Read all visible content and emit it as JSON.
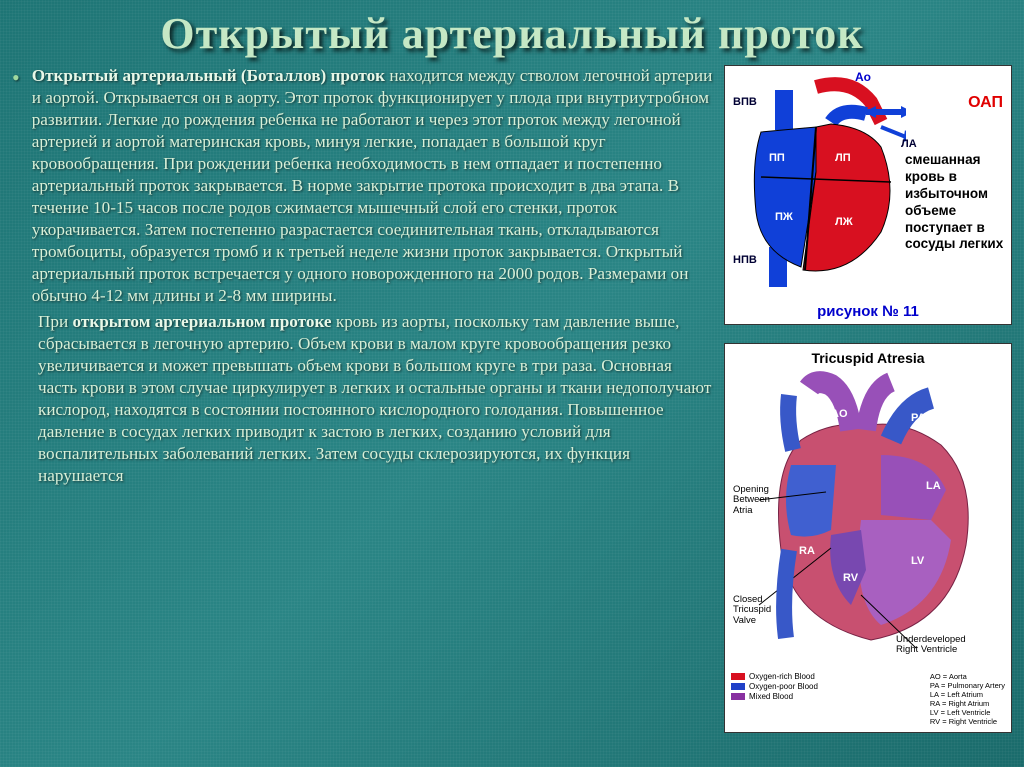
{
  "title": "Открытый артериальный проток",
  "paragraph1": {
    "bold_lead": "Открытый артериальный (Боталлов) проток",
    "rest": " находится между стволом легочной артерии и аортой. Открывается он в аорту. Этот проток функционирует у плода при внутриутробном развитии. Легкие до рождения ребенка не работают и через этот проток между легочной артерией и аортой материнская кровь, минуя легкие, попадает в большой круг кровообращения. При рождении ребенка необходимость в нем отпадает и постепенно артериальный проток закрывается. В норме закрытие протока происходит в два этапа. В течение 10-15 часов после родов сжимается мышечный слой его стенки, проток укорачивается. Затем постепенно разрастается соединительная ткань, откладываются тромбоциты, образуется тромб и к третьей неделе жизни проток закрывается. Открытый артериальный проток встречается у одного новорожденного на 2000 родов. Размерами он обычно 4-12 мм длины и 2-8 мм ширины."
  },
  "paragraph2": {
    "pre": "   При ",
    "bold": "открытом артериальном протоке",
    "rest": " кровь из аорты, поскольку там давление выше, сбрасывается в легочную артерию. Объем крови в малом круге кровообращения резко увеличивается и может превышать объем крови в большом круге в три раза. Основная часть крови в этом случае циркулирует в легких и остальные органы и ткани недополучают кислород, находятся в состоянии постоянного кислородного голодания. Повышенное давление в сосудах легких приводит к застою в легких, созданию условий для воспалительных заболеваний легких. Затем сосуды склерозируются, их функция нарушается"
  },
  "fig1": {
    "oap": "ОАП",
    "ao": "Ао",
    "labels": {
      "vpv": "ВПВ",
      "pp": "ПП",
      "lp": "ЛП",
      "la": "ЛА",
      "pzh": "ПЖ",
      "lzh": "ЛЖ",
      "npv": "НПВ"
    },
    "side_text": "смешанная кровь в избыточном объеме поступает в сосуды легких",
    "caption": "рисунок № 11",
    "colors": {
      "blue": "#1040d8",
      "red": "#d81020",
      "purple": "#8830a0",
      "outline": "#000000"
    }
  },
  "fig2": {
    "title": "Tricuspid Atresia",
    "labels": {
      "ao": "AO",
      "pa": "PA",
      "la": "LA",
      "lv": "LV",
      "rv": "RV",
      "ra": "RA",
      "opening": "Opening\nBetween\nAtria",
      "closed_valve": "Closed\nTricuspid\nValve",
      "underdev": "Underdeveloped\nRight Ventricle"
    },
    "legend_colors": [
      {
        "label": "Oxygen-rich Blood",
        "color": "#d81020"
      },
      {
        "label": "Oxygen-poor Blood",
        "color": "#2040c8"
      },
      {
        "label": "Mixed Blood",
        "color": "#8830a0"
      }
    ],
    "legend_abbrev": [
      "AO = Aorta",
      "PA = Pulmonary Artery",
      "LA = Left Atrium",
      "RA = Right Atrium",
      "LV = Left Ventricle",
      "RV = Right Ventricle"
    ],
    "colors": {
      "ao": "#9850b8",
      "pa": "#3858c8",
      "heart_body": "#c85070",
      "ra": "#4060d0",
      "la": "#9850b8",
      "lv": "#a860c0",
      "rv": "#7848b0"
    }
  }
}
